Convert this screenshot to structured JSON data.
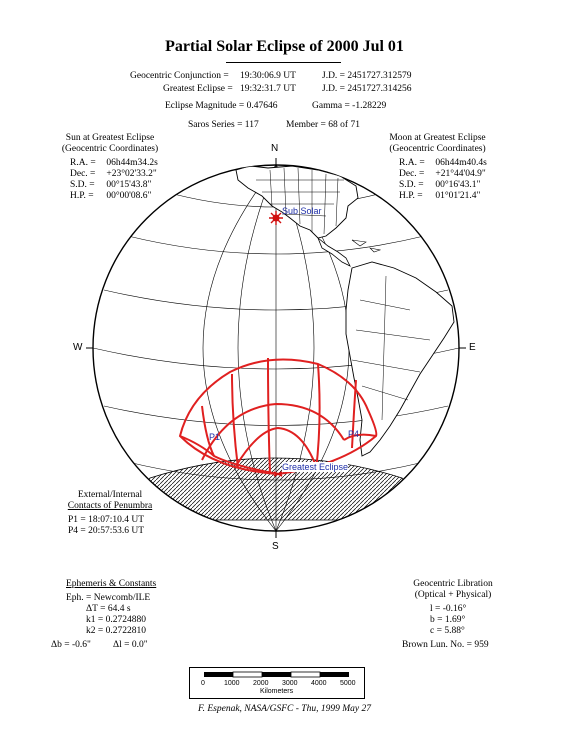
{
  "header": {
    "title": "Partial Solar Eclipse of 2000 Jul 01",
    "conj_label": "Geocentric Conjunction =",
    "conj_time": "19:30:06.9 UT",
    "conj_jd": "J.D. =  2451727.312579",
    "ge_label": "Greatest Eclipse =",
    "ge_time": "19:32:31.7 UT",
    "ge_jd": "J.D. =  2451727.314256",
    "magnitude": "Eclipse Magnitude = 0.47646",
    "gamma": "Gamma = -1.28229",
    "saros": "Saros Series = 117",
    "member": "Member = 68 of 71"
  },
  "sun": {
    "heading1": "Sun at Greatest Eclipse",
    "heading2": "(Geocentric Coordinates)",
    "rows": [
      {
        "label": "R.A. =",
        "value": "06h44m34.2s"
      },
      {
        "label": "Dec. =",
        "value": "+23°02'33.2\""
      },
      {
        "label": "S.D. =",
        "value": "00°15'43.8\""
      },
      {
        "label": "H.P. =",
        "value": "00°00'08.6\""
      }
    ]
  },
  "moon": {
    "heading1": "Moon at Greatest Eclipse",
    "heading2": "(Geocentric Coordinates)",
    "rows": [
      {
        "label": "R.A. =",
        "value": "06h44m40.4s"
      },
      {
        "label": "Dec. =",
        "value": "+21°44'04.9\""
      },
      {
        "label": "S.D. =",
        "value": "00°16'43.1\""
      },
      {
        "label": "H.P. =",
        "value": "01°01'21.4\""
      }
    ]
  },
  "globe": {
    "north": "N",
    "south": "S",
    "west": "W",
    "east": "E",
    "sub_solar": "Sub Solar",
    "p1": "P1",
    "p4": "P4",
    "greatest_eclipse": "Greatest Eclipse",
    "eclipse_color": "#e02020",
    "marker_color": "#d01010",
    "label_color": "#1f2fa8"
  },
  "contacts": {
    "heading1": "External/Internal",
    "heading2": "Contacts of Penumbra",
    "p1": "P1 = 18:07:10.4 UT",
    "p4": "P4 = 20:57:53.6 UT"
  },
  "ephemeris": {
    "heading": "Ephemeris & Constants",
    "eph": "Eph. = Newcomb/ILE",
    "dt": "ΔT =      64.4 s",
    "k1": "k1 = 0.2724880",
    "k2": "k2 = 0.2722810",
    "db": "Δb =  -0.6\"",
    "dl": "Δl =   0.0\""
  },
  "libration": {
    "heading1": "Geocentric Libration",
    "heading2": "(Optical + Physical)",
    "l": "l =   -0.16°",
    "b": "b =    1.69°",
    "c": "c =    5.88°",
    "brown": "Brown Lun. No. =  959"
  },
  "scale": {
    "ticks": [
      "0",
      "1000",
      "2000",
      "3000",
      "4000",
      "5000"
    ],
    "unit": "Kilometers"
  },
  "footer": "F. Espenak, NASA/GSFC - Thu, 1999 May 27"
}
